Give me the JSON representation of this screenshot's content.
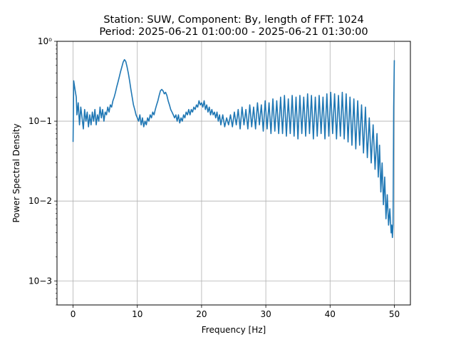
{
  "chart_data": {
    "type": "line",
    "title": "Station: SUW, Component: By, length of FFT: 1024",
    "subtitle": "Period: 2025-06-21 01:00:00 - 2025-06-21 01:30:00",
    "xlabel": "Frequency [Hz]",
    "ylabel": "Power Spectral Density",
    "xlim": [
      -2.5,
      52.5
    ],
    "ylim": [
      0.0005,
      1
    ],
    "yscale": "log",
    "grid": true,
    "xticks": [
      0,
      10,
      20,
      30,
      40,
      50
    ],
    "xtick_labels": [
      "0",
      "10",
      "20",
      "30",
      "40",
      "50"
    ],
    "yticks": [
      0.001,
      0.01,
      0.1,
      1
    ],
    "ytick_labels": [
      "10−3",
      "10−2",
      "10−1",
      "10⁰"
    ],
    "line_color": "#1f77b4",
    "series": [
      {
        "points": [
          [
            0.0,
            0.055
          ],
          [
            0.1,
            0.32
          ],
          [
            0.3,
            0.25
          ],
          [
            0.5,
            0.2
          ],
          [
            0.6,
            0.12
          ],
          [
            0.8,
            0.17
          ],
          [
            1.0,
            0.09
          ],
          [
            1.2,
            0.15
          ],
          [
            1.4,
            0.11
          ],
          [
            1.6,
            0.08
          ],
          [
            1.8,
            0.14
          ],
          [
            2.0,
            0.1
          ],
          [
            2.2,
            0.13
          ],
          [
            2.4,
            0.085
          ],
          [
            2.6,
            0.12
          ],
          [
            2.8,
            0.09
          ],
          [
            3.0,
            0.13
          ],
          [
            3.2,
            0.1
          ],
          [
            3.4,
            0.14
          ],
          [
            3.6,
            0.09
          ],
          [
            3.8,
            0.12
          ],
          [
            4.0,
            0.1
          ],
          [
            4.2,
            0.15
          ],
          [
            4.4,
            0.11
          ],
          [
            4.6,
            0.14
          ],
          [
            4.8,
            0.1
          ],
          [
            5.0,
            0.13
          ],
          [
            5.2,
            0.12
          ],
          [
            5.4,
            0.15
          ],
          [
            5.6,
            0.13
          ],
          [
            5.8,
            0.16
          ],
          [
            6.0,
            0.15
          ],
          [
            6.2,
            0.18
          ],
          [
            6.4,
            0.2
          ],
          [
            6.6,
            0.23
          ],
          [
            6.8,
            0.27
          ],
          [
            7.0,
            0.31
          ],
          [
            7.2,
            0.36
          ],
          [
            7.4,
            0.42
          ],
          [
            7.6,
            0.48
          ],
          [
            7.8,
            0.55
          ],
          [
            8.0,
            0.59
          ],
          [
            8.2,
            0.56
          ],
          [
            8.4,
            0.48
          ],
          [
            8.6,
            0.4
          ],
          [
            8.8,
            0.32
          ],
          [
            9.0,
            0.25
          ],
          [
            9.2,
            0.2
          ],
          [
            9.4,
            0.16
          ],
          [
            9.6,
            0.14
          ],
          [
            9.8,
            0.12
          ],
          [
            10.0,
            0.11
          ],
          [
            10.2,
            0.1
          ],
          [
            10.4,
            0.12
          ],
          [
            10.6,
            0.09
          ],
          [
            10.8,
            0.11
          ],
          [
            11.0,
            0.085
          ],
          [
            11.2,
            0.1
          ],
          [
            11.4,
            0.09
          ],
          [
            11.6,
            0.11
          ],
          [
            11.8,
            0.1
          ],
          [
            12.0,
            0.12
          ],
          [
            12.2,
            0.11
          ],
          [
            12.4,
            0.13
          ],
          [
            12.6,
            0.12
          ],
          [
            12.8,
            0.14
          ],
          [
            13.0,
            0.16
          ],
          [
            13.2,
            0.18
          ],
          [
            13.4,
            0.21
          ],
          [
            13.6,
            0.24
          ],
          [
            13.8,
            0.25
          ],
          [
            14.0,
            0.24
          ],
          [
            14.2,
            0.22
          ],
          [
            14.4,
            0.23
          ],
          [
            14.6,
            0.21
          ],
          [
            14.8,
            0.18
          ],
          [
            15.0,
            0.16
          ],
          [
            15.2,
            0.14
          ],
          [
            15.4,
            0.13
          ],
          [
            15.6,
            0.12
          ],
          [
            15.8,
            0.11
          ],
          [
            16.0,
            0.12
          ],
          [
            16.2,
            0.1
          ],
          [
            16.4,
            0.12
          ],
          [
            16.6,
            0.095
          ],
          [
            16.8,
            0.11
          ],
          [
            17.0,
            0.1
          ],
          [
            17.2,
            0.12
          ],
          [
            17.4,
            0.11
          ],
          [
            17.6,
            0.13
          ],
          [
            17.8,
            0.12
          ],
          [
            18.0,
            0.14
          ],
          [
            18.2,
            0.12
          ],
          [
            18.4,
            0.14
          ],
          [
            18.6,
            0.13
          ],
          [
            18.8,
            0.15
          ],
          [
            19.0,
            0.14
          ],
          [
            19.2,
            0.16
          ],
          [
            19.4,
            0.15
          ],
          [
            19.6,
            0.18
          ],
          [
            19.8,
            0.16
          ],
          [
            20.0,
            0.17
          ],
          [
            20.2,
            0.15
          ],
          [
            20.4,
            0.18
          ],
          [
            20.6,
            0.14
          ],
          [
            20.8,
            0.16
          ],
          [
            21.0,
            0.13
          ],
          [
            21.2,
            0.15
          ],
          [
            21.4,
            0.12
          ],
          [
            21.6,
            0.14
          ],
          [
            21.8,
            0.12
          ],
          [
            22.0,
            0.13
          ],
          [
            22.2,
            0.11
          ],
          [
            22.4,
            0.13
          ],
          [
            22.6,
            0.1
          ],
          [
            22.8,
            0.12
          ],
          [
            23.0,
            0.09
          ],
          [
            23.3,
            0.12
          ],
          [
            23.6,
            0.085
          ],
          [
            23.9,
            0.11
          ],
          [
            24.2,
            0.09
          ],
          [
            24.5,
            0.12
          ],
          [
            24.8,
            0.085
          ],
          [
            25.1,
            0.13
          ],
          [
            25.4,
            0.09
          ],
          [
            25.7,
            0.14
          ],
          [
            26.0,
            0.08
          ],
          [
            26.3,
            0.15
          ],
          [
            26.6,
            0.09
          ],
          [
            26.9,
            0.14
          ],
          [
            27.2,
            0.08
          ],
          [
            27.5,
            0.16
          ],
          [
            27.8,
            0.085
          ],
          [
            28.1,
            0.15
          ],
          [
            28.4,
            0.08
          ],
          [
            28.7,
            0.17
          ],
          [
            29.0,
            0.09
          ],
          [
            29.3,
            0.16
          ],
          [
            29.6,
            0.075
          ],
          [
            29.9,
            0.18
          ],
          [
            30.2,
            0.08
          ],
          [
            30.5,
            0.17
          ],
          [
            30.8,
            0.07
          ],
          [
            31.1,
            0.19
          ],
          [
            31.4,
            0.075
          ],
          [
            31.7,
            0.18
          ],
          [
            32.0,
            0.07
          ],
          [
            32.3,
            0.2
          ],
          [
            32.6,
            0.07
          ],
          [
            32.9,
            0.21
          ],
          [
            33.2,
            0.065
          ],
          [
            33.5,
            0.19
          ],
          [
            33.8,
            0.07
          ],
          [
            34.1,
            0.21
          ],
          [
            34.4,
            0.065
          ],
          [
            34.7,
            0.2
          ],
          [
            35.0,
            0.06
          ],
          [
            35.3,
            0.21
          ],
          [
            35.6,
            0.07
          ],
          [
            35.9,
            0.2
          ],
          [
            36.2,
            0.065
          ],
          [
            36.5,
            0.22
          ],
          [
            36.8,
            0.07
          ],
          [
            37.1,
            0.21
          ],
          [
            37.4,
            0.06
          ],
          [
            37.7,
            0.2
          ],
          [
            38.0,
            0.065
          ],
          [
            38.3,
            0.21
          ],
          [
            38.6,
            0.07
          ],
          [
            38.9,
            0.2
          ],
          [
            39.2,
            0.06
          ],
          [
            39.5,
            0.22
          ],
          [
            39.8,
            0.065
          ],
          [
            40.1,
            0.23
          ],
          [
            40.4,
            0.07
          ],
          [
            40.7,
            0.22
          ],
          [
            41.0,
            0.06
          ],
          [
            41.3,
            0.21
          ],
          [
            41.6,
            0.065
          ],
          [
            41.9,
            0.23
          ],
          [
            42.2,
            0.06
          ],
          [
            42.5,
            0.22
          ],
          [
            42.8,
            0.055
          ],
          [
            43.1,
            0.2
          ],
          [
            43.4,
            0.05
          ],
          [
            43.7,
            0.19
          ],
          [
            44.0,
            0.045
          ],
          [
            44.3,
            0.18
          ],
          [
            44.6,
            0.05
          ],
          [
            44.9,
            0.16
          ],
          [
            45.2,
            0.04
          ],
          [
            45.5,
            0.15
          ],
          [
            45.8,
            0.035
          ],
          [
            46.1,
            0.11
          ],
          [
            46.4,
            0.03
          ],
          [
            46.7,
            0.09
          ],
          [
            47.0,
            0.025
          ],
          [
            47.3,
            0.07
          ],
          [
            47.5,
            0.02
          ],
          [
            47.7,
            0.05
          ],
          [
            47.9,
            0.013
          ],
          [
            48.1,
            0.03
          ],
          [
            48.3,
            0.009
          ],
          [
            48.5,
            0.02
          ],
          [
            48.7,
            0.006
          ],
          [
            48.9,
            0.012
          ],
          [
            49.1,
            0.005
          ],
          [
            49.3,
            0.008
          ],
          [
            49.5,
            0.004
          ],
          [
            49.6,
            0.005
          ],
          [
            49.7,
            0.0035
          ],
          [
            49.8,
            0.005
          ],
          [
            49.9,
            0.15
          ],
          [
            50.0,
            0.58
          ]
        ]
      }
    ]
  }
}
